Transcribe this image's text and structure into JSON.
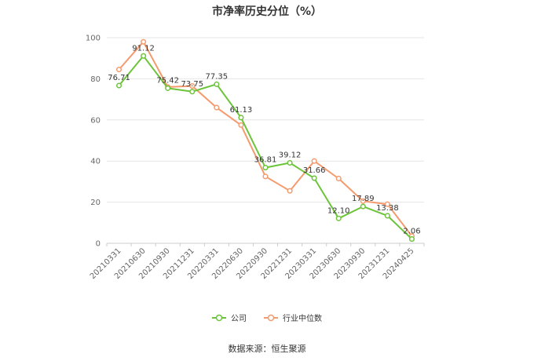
{
  "chart_data": {
    "type": "line",
    "title": "市净率历史分位（%）",
    "categories": [
      "20210331",
      "20210630",
      "20210930",
      "20211231",
      "20220331",
      "20220630",
      "20220930",
      "20221231",
      "20230331",
      "20230630",
      "20230930",
      "20231231",
      "20240425"
    ],
    "ylim": [
      0,
      100
    ],
    "yticks": [
      0,
      20,
      40,
      60,
      80,
      100
    ],
    "grid": true,
    "legend_position": "bottom",
    "series": [
      {
        "name": "公司",
        "color": "#6cc43a",
        "values": [
          76.71,
          91.12,
          75.42,
          73.75,
          77.35,
          61.13,
          36.81,
          39.12,
          31.66,
          12.1,
          17.89,
          13.38,
          2.06
        ],
        "labels": [
          "76.71",
          "91.12",
          "75.42",
          "73.75",
          "77.35",
          "61.13",
          "36.81",
          "39.12",
          "31.66",
          "12.10",
          "17.89",
          "13.38",
          "2.06"
        ]
      },
      {
        "name": "行业中位数",
        "color": "#f59a6d",
        "values": [
          84.5,
          98.0,
          76.0,
          76.5,
          66.0,
          57.5,
          32.5,
          25.5,
          40.0,
          31.5,
          20.5,
          19.0,
          3.5
        ]
      }
    ]
  },
  "footer": {
    "source": "数据来源：恒生聚源"
  }
}
